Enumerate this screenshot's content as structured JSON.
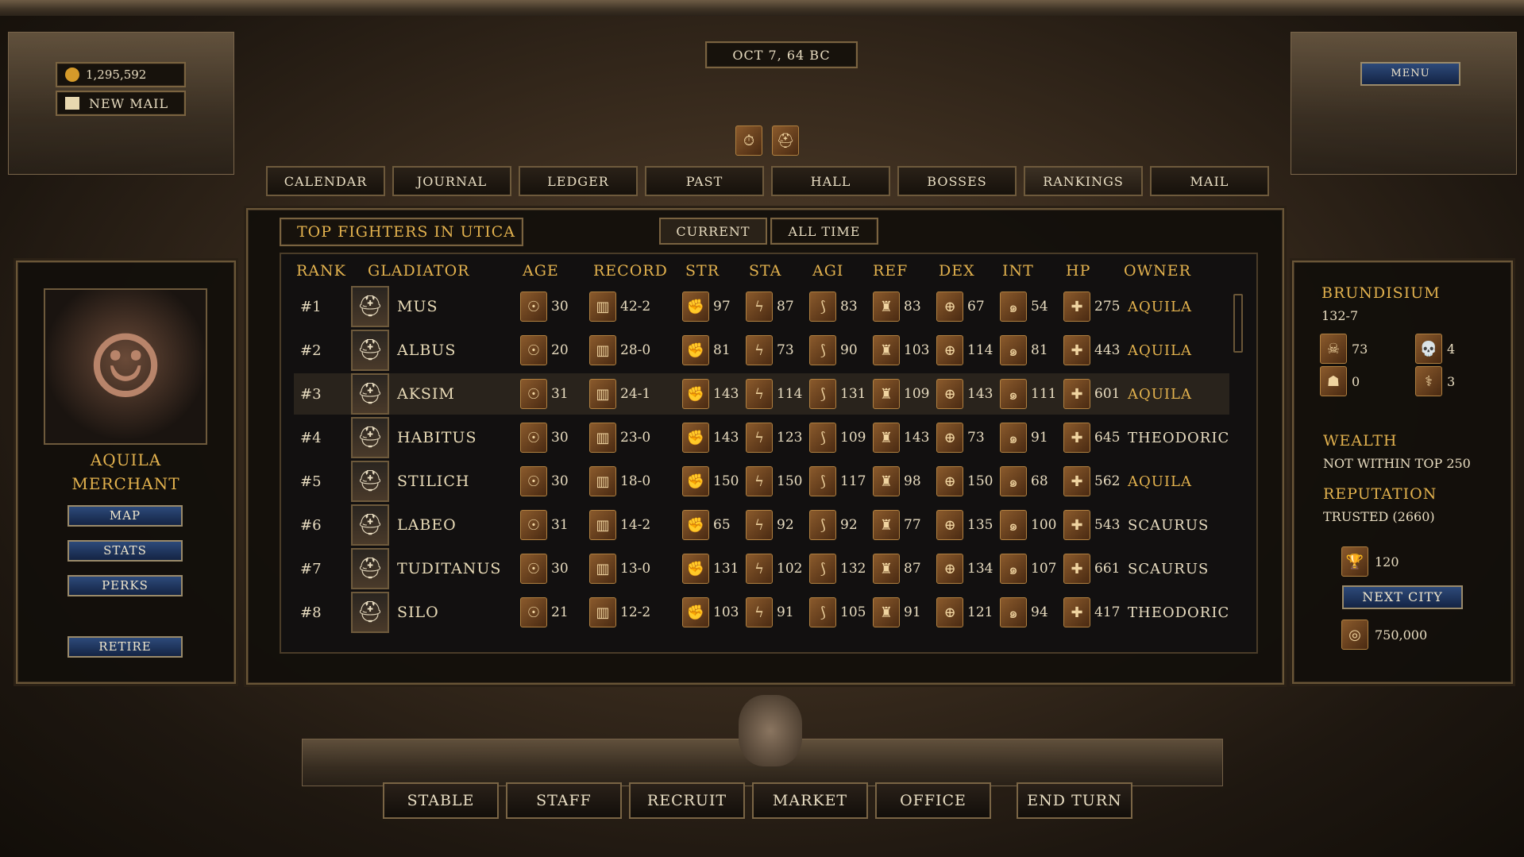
{
  "header": {
    "gold": "1,295,592",
    "mail": "NEW MAIL",
    "date": "OCT 7, 64 BC",
    "menu": "MENU"
  },
  "tabs": [
    "CALENDAR",
    "JOURNAL",
    "LEDGER",
    "PAST",
    "HALL",
    "BOSSES",
    "RANKINGS",
    "MAIL"
  ],
  "active_tab": "RANKINGS",
  "rankings": {
    "title": "TOP FIGHTERS IN UTICA",
    "filters": [
      "CURRENT",
      "ALL TIME"
    ],
    "columns": [
      "RANK",
      "GLADIATOR",
      "AGE",
      "RECORD",
      "STR",
      "STA",
      "AGI",
      "REF",
      "DEX",
      "INT",
      "HP",
      "OWNER"
    ],
    "rows": [
      {
        "rank": "#1",
        "name": "MUS",
        "age": "30",
        "record": "42-2",
        "str": "97",
        "sta": "87",
        "agi": "83",
        "ref": "83",
        "dex": "67",
        "int": "54",
        "hp": "275",
        "owner": "AQUILA",
        "own": true
      },
      {
        "rank": "#2",
        "name": "ALBUS",
        "age": "20",
        "record": "28-0",
        "str": "81",
        "sta": "73",
        "agi": "90",
        "ref": "103",
        "dex": "114",
        "int": "81",
        "hp": "443",
        "owner": "AQUILA",
        "own": true
      },
      {
        "rank": "#3",
        "name": "AKSIM",
        "age": "31",
        "record": "24-1",
        "str": "143",
        "sta": "114",
        "agi": "131",
        "ref": "109",
        "dex": "143",
        "int": "111",
        "hp": "601",
        "owner": "AQUILA",
        "own": true,
        "selected": true
      },
      {
        "rank": "#4",
        "name": "HABITUS",
        "age": "30",
        "record": "23-0",
        "str": "143",
        "sta": "123",
        "agi": "109",
        "ref": "143",
        "dex": "73",
        "int": "91",
        "hp": "645",
        "owner": "THEODORIC",
        "own": false
      },
      {
        "rank": "#5",
        "name": "STILICH",
        "age": "30",
        "record": "18-0",
        "str": "150",
        "sta": "150",
        "agi": "117",
        "ref": "98",
        "dex": "150",
        "int": "68",
        "hp": "562",
        "owner": "AQUILA",
        "own": true
      },
      {
        "rank": "#6",
        "name": "LABEO",
        "age": "31",
        "record": "14-2",
        "str": "65",
        "sta": "92",
        "agi": "92",
        "ref": "77",
        "dex": "135",
        "int": "100",
        "hp": "543",
        "owner": "SCAURUS",
        "own": false
      },
      {
        "rank": "#7",
        "name": "TUDITANUS",
        "age": "30",
        "record": "13-0",
        "str": "131",
        "sta": "102",
        "agi": "132",
        "ref": "87",
        "dex": "134",
        "int": "107",
        "hp": "661",
        "owner": "SCAURUS",
        "own": false
      },
      {
        "rank": "#8",
        "name": "SILO",
        "age": "21",
        "record": "12-2",
        "str": "103",
        "sta": "91",
        "agi": "105",
        "ref": "91",
        "dex": "121",
        "int": "94",
        "hp": "417",
        "owner": "THEODORIC",
        "own": false
      }
    ]
  },
  "player": {
    "name": "AQUILA",
    "title": "MERCHANT",
    "buttons": [
      "MAP",
      "STATS",
      "PERKS",
      "RETIRE"
    ]
  },
  "city": {
    "name": "BRUNDISIUM",
    "record": "132-7",
    "kills": "73",
    "deaths": "4",
    "unknown": "0",
    "injuries": "3",
    "wealth_label": "WEALTH",
    "wealth": "NOT WITHIN TOP 250",
    "reputation_label": "REPUTATION",
    "reputation": "TRUSTED (2660)",
    "trophies": "120",
    "next_city": "NEXT CITY",
    "cost": "750,000"
  },
  "bottom": [
    "STABLE",
    "STAFF",
    "RECRUIT",
    "MARKET",
    "OFFICE",
    "END TURN"
  ],
  "colors": {
    "accent_gold": "#e3b24e",
    "button_blue": "#1f3560"
  }
}
